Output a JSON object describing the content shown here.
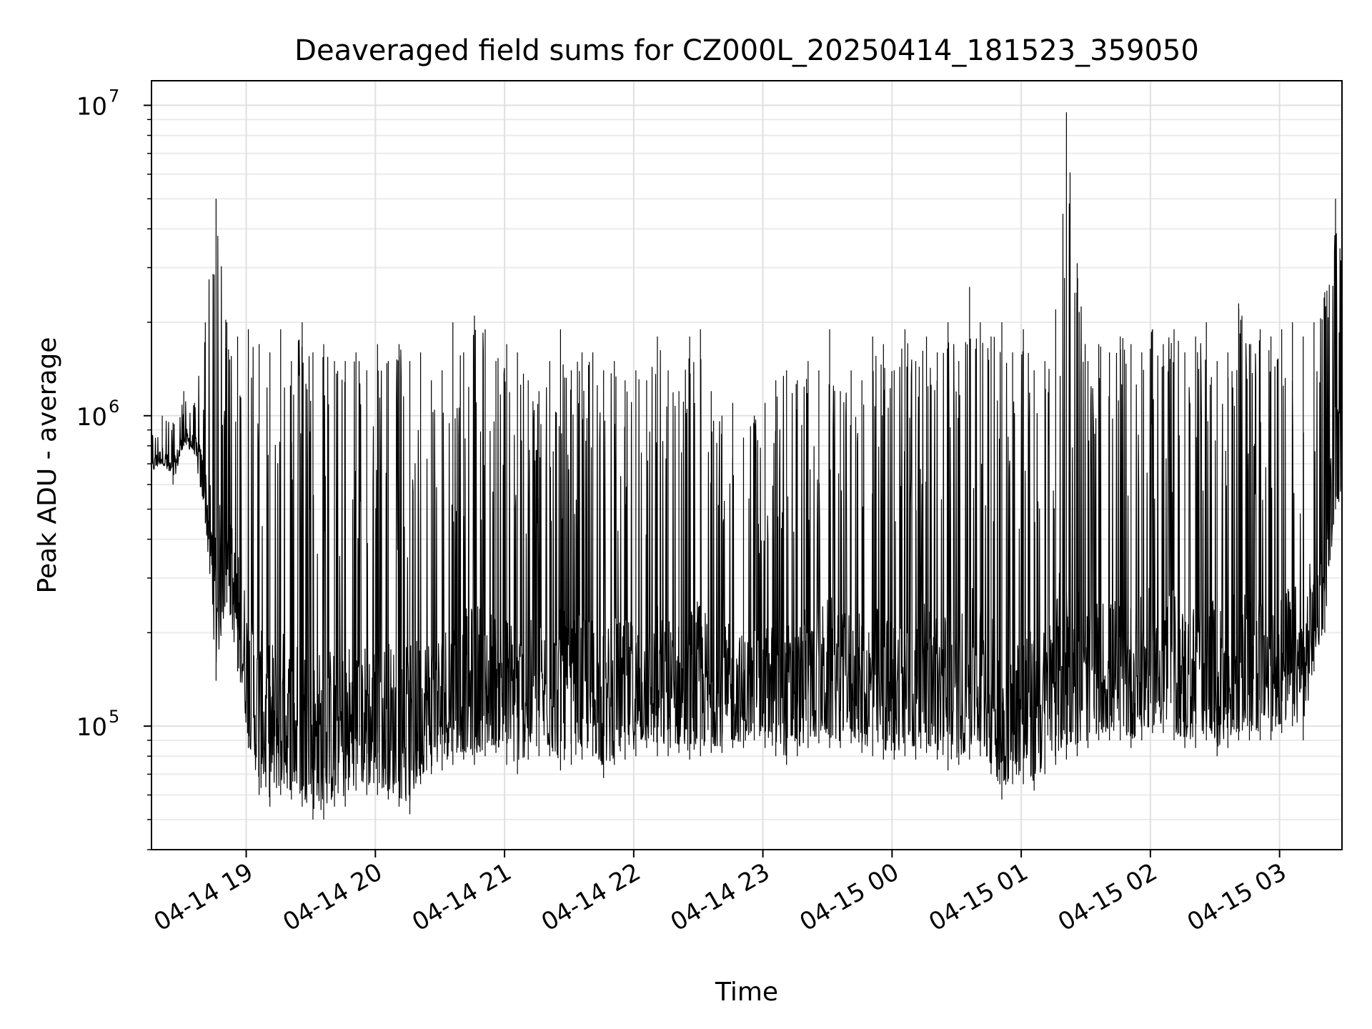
{
  "chart_data": {
    "type": "line",
    "title": "Deaveraged field sums for CZ000L_20250414_181523_359050",
    "xlabel": "Time",
    "ylabel": "Peak ADU - average",
    "yscale": "log",
    "xlim": [
      "2025-04-14 18:16",
      "2025-04-15 03:29"
    ],
    "ylim": [
      40000,
      12000000
    ],
    "grid": true,
    "line_color": "#000000",
    "x_ticks": [
      {
        "value": "2025-04-14 19:00",
        "label": "04-14 19"
      },
      {
        "value": "2025-04-14 20:00",
        "label": "04-14 20"
      },
      {
        "value": "2025-04-14 21:00",
        "label": "04-14 21"
      },
      {
        "value": "2025-04-14 22:00",
        "label": "04-14 22"
      },
      {
        "value": "2025-04-14 23:00",
        "label": "04-14 23"
      },
      {
        "value": "2025-04-15 00:00",
        "label": "04-15 00"
      },
      {
        "value": "2025-04-15 01:00",
        "label": "04-15 01"
      },
      {
        "value": "2025-04-15 02:00",
        "label": "04-15 02"
      },
      {
        "value": "2025-04-15 03:00",
        "label": "04-15 03"
      }
    ],
    "y_ticks": [
      {
        "value": 100000,
        "base": "10",
        "exp": "5"
      },
      {
        "value": 1000000,
        "base": "10",
        "exp": "6"
      },
      {
        "value": 10000000,
        "base": "10",
        "exp": "7"
      }
    ],
    "series": [
      {
        "x": [
          "2025-04-14 18:16",
          "2025-04-14 18:21",
          "2025-04-14 18:26",
          "2025-04-14 18:31",
          "2025-04-14 18:36",
          "2025-04-14 18:41",
          "2025-04-14 18:46",
          "2025-04-14 18:51",
          "2025-04-14 18:56",
          "2025-04-14 19:01",
          "2025-04-14 19:06",
          "2025-04-14 19:11",
          "2025-04-14 19:16",
          "2025-04-14 19:21",
          "2025-04-14 19:26",
          "2025-04-14 19:31",
          "2025-04-14 19:36",
          "2025-04-14 19:41",
          "2025-04-14 19:46",
          "2025-04-14 19:51",
          "2025-04-14 19:56",
          "2025-04-14 20:01",
          "2025-04-14 20:06",
          "2025-04-14 20:11",
          "2025-04-14 20:16",
          "2025-04-14 20:21",
          "2025-04-14 20:26",
          "2025-04-14 20:31",
          "2025-04-14 20:36",
          "2025-04-14 20:41",
          "2025-04-14 20:46",
          "2025-04-14 20:51",
          "2025-04-14 20:56",
          "2025-04-14 21:01",
          "2025-04-14 21:06",
          "2025-04-14 21:11",
          "2025-04-14 21:16",
          "2025-04-14 21:21",
          "2025-04-14 21:26",
          "2025-04-14 21:31",
          "2025-04-14 21:36",
          "2025-04-14 21:41",
          "2025-04-14 21:46",
          "2025-04-14 21:51",
          "2025-04-14 21:56",
          "2025-04-14 22:01",
          "2025-04-14 22:06",
          "2025-04-14 22:11",
          "2025-04-14 22:16",
          "2025-04-14 22:21",
          "2025-04-14 22:26",
          "2025-04-14 22:31",
          "2025-04-14 22:36",
          "2025-04-14 22:41",
          "2025-04-14 22:46",
          "2025-04-14 22:51",
          "2025-04-14 22:56",
          "2025-04-14 23:01",
          "2025-04-14 23:06",
          "2025-04-14 23:11",
          "2025-04-14 23:16",
          "2025-04-14 23:21",
          "2025-04-14 23:26",
          "2025-04-14 23:31",
          "2025-04-14 23:36",
          "2025-04-14 23:41",
          "2025-04-14 23:46",
          "2025-04-14 23:51",
          "2025-04-14 23:56",
          "2025-04-15 00:01",
          "2025-04-15 00:06",
          "2025-04-15 00:11",
          "2025-04-15 00:16",
          "2025-04-15 00:21",
          "2025-04-15 00:26",
          "2025-04-15 00:31",
          "2025-04-15 00:36",
          "2025-04-15 00:41",
          "2025-04-15 00:46",
          "2025-04-15 00:51",
          "2025-04-15 00:56",
          "2025-04-15 01:01",
          "2025-04-15 01:06",
          "2025-04-15 01:11",
          "2025-04-15 01:16",
          "2025-04-15 01:21",
          "2025-04-15 01:26",
          "2025-04-15 01:31",
          "2025-04-15 01:36",
          "2025-04-15 01:41",
          "2025-04-15 01:46",
          "2025-04-15 01:51",
          "2025-04-15 01:56",
          "2025-04-15 02:01",
          "2025-04-15 02:06",
          "2025-04-15 02:11",
          "2025-04-15 02:16",
          "2025-04-15 02:21",
          "2025-04-15 02:26",
          "2025-04-15 02:31",
          "2025-04-15 02:36",
          "2025-04-15 02:41",
          "2025-04-15 02:46",
          "2025-04-15 02:51",
          "2025-04-15 02:56",
          "2025-04-15 03:01",
          "2025-04-15 03:06",
          "2025-04-15 03:11",
          "2025-04-15 03:16",
          "2025-04-15 03:21",
          "2025-04-15 03:26",
          "2025-04-15 03:29"
        ],
        "y_low": [
          650000,
          700000,
          600000,
          800000,
          750000,
          450000,
          140000,
          250000,
          150000,
          85000,
          60000,
          55000,
          60000,
          58000,
          55000,
          50000,
          50000,
          55000,
          55000,
          62000,
          60000,
          60000,
          58000,
          55000,
          52000,
          65000,
          70000,
          72000,
          75000,
          78000,
          75000,
          80000,
          82000,
          75000,
          70000,
          78000,
          80000,
          80000,
          72000,
          75000,
          78000,
          80000,
          68000,
          75000,
          78000,
          80000,
          85000,
          80000,
          80000,
          82000,
          78000,
          80000,
          82000,
          82000,
          85000,
          85000,
          90000,
          85000,
          80000,
          75000,
          80000,
          85000,
          88000,
          85000,
          85000,
          88000,
          82000,
          80000,
          78000,
          78000,
          80000,
          78000,
          82000,
          78000,
          72000,
          75000,
          78000,
          80000,
          70000,
          58000,
          65000,
          65000,
          62000,
          70000,
          75000,
          78000,
          80000,
          85000,
          90000,
          90000,
          90000,
          85000,
          90000,
          95000,
          95000,
          90000,
          85000,
          85000,
          90000,
          80000,
          85000,
          90000,
          90000,
          90000,
          90000,
          95000,
          100000,
          90000,
          150000,
          200000,
          500000,
          500000
        ],
        "y_high": [
          900000,
          1000000,
          950000,
          1200000,
          1100000,
          2000000,
          5000000,
          2000000,
          1800000,
          1900000,
          1700000,
          1600000,
          1900000,
          1500000,
          2000000,
          1600000,
          1700000,
          1500000,
          1500000,
          1600000,
          1400000,
          1700000,
          1500000,
          1700000,
          1500000,
          1600000,
          1300000,
          1400000,
          2000000,
          1600000,
          2100000,
          1900000,
          1500000,
          1700000,
          1600000,
          1300000,
          1200000,
          1500000,
          1900000,
          1400000,
          1600000,
          1600000,
          1400000,
          1500000,
          1300000,
          1400000,
          1300000,
          1800000,
          1400000,
          1200000,
          1800000,
          1900000,
          1200000,
          1000000,
          1100000,
          850000,
          1000000,
          1100000,
          1300000,
          1400000,
          1300000,
          1500000,
          1400000,
          1900000,
          1200000,
          1400000,
          1300000,
          1800000,
          1700000,
          1400000,
          1900000,
          1500000,
          1800000,
          1600000,
          2000000,
          1500000,
          2600000,
          2000000,
          1800000,
          2000000,
          1600000,
          1900000,
          1400000,
          1500000,
          2200000,
          9500000,
          3100000,
          1500000,
          1700000,
          1600000,
          1800000,
          1700000,
          1600000,
          1900000,
          1700000,
          1900000,
          1600000,
          1800000,
          2000000,
          1500000,
          1600000,
          2300000,
          1700000,
          1900000,
          1800000,
          1900000,
          2000000,
          1800000,
          2000000,
          2500000,
          5000000,
          3500000
        ]
      }
    ]
  }
}
